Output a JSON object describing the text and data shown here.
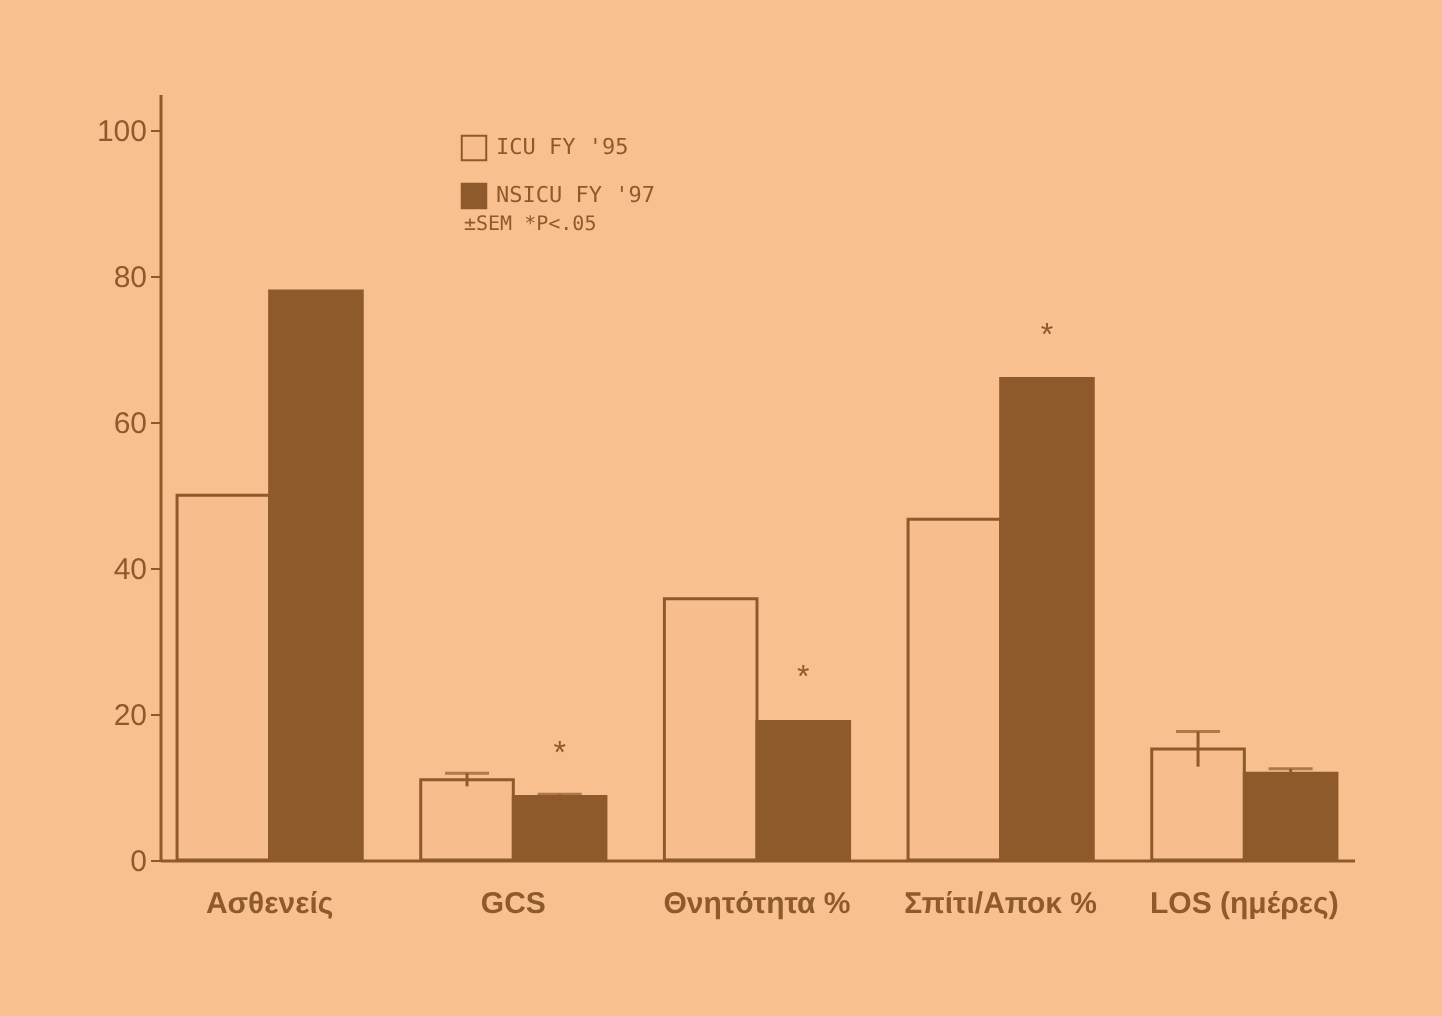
{
  "chart_data": {
    "type": "bar",
    "categories": [
      "Ασθενείς",
      "GCS",
      "Θνητότητα %",
      "Σπίτι/Αποκ %",
      "LOS (ημέρες)"
    ],
    "series": [
      {
        "name": "ICU FY '95",
        "color": "#f7bd8c",
        "values": [
          50,
          11,
          35.8,
          46.7,
          15.2
        ],
        "errors": [
          null,
          0.9,
          null,
          null,
          2.4
        ]
      },
      {
        "name": "NSICU FY '97",
        "color": "#8f5a2b",
        "values": [
          78,
          8.7,
          19,
          66,
          11.9
        ],
        "errors": [
          null,
          0.3,
          null,
          null,
          0.6
        ]
      }
    ],
    "ylim": [
      0,
      105
    ],
    "yticks": [
      0,
      20,
      40,
      60,
      80,
      100
    ],
    "annotations": [
      "±SEM   *P<.05",
      {
        "text": "*",
        "x": "GCS",
        "y": 8.7
      },
      {
        "text": "*",
        "x": "Θνητότητα %",
        "y": 19
      },
      {
        "text": "*",
        "x": "Σπίτι/Αποκ %",
        "y": 66
      }
    ],
    "legend": "top",
    "grid": false
  }
}
